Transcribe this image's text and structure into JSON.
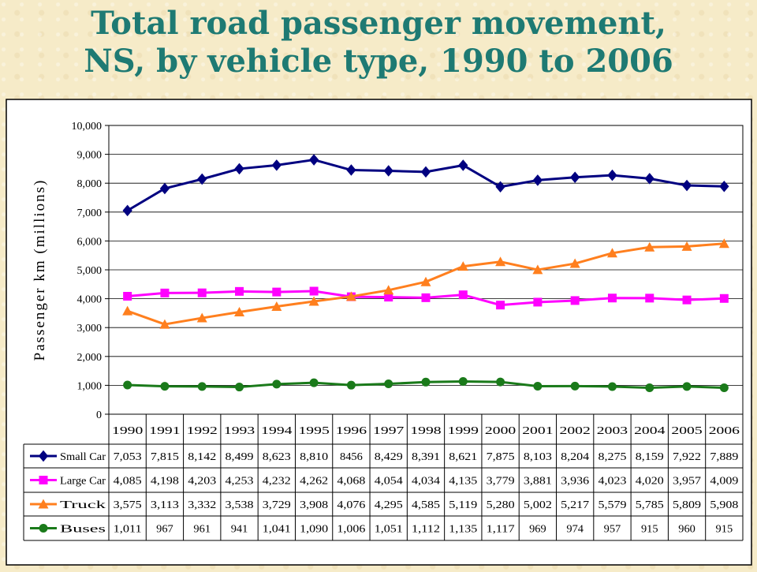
{
  "title_line1": "Total road passenger movement,",
  "title_line2": "NS, by vehicle type, 1990 to 2006",
  "chart_data": {
    "type": "line",
    "title": "Total road passenger movement, NS, by vehicle type, 1990 to 2006",
    "xlabel": "",
    "ylabel": "Passenger km (millions)",
    "ylim": [
      0,
      10000
    ],
    "yticks": [
      "0",
      "1,000",
      "2,000",
      "3,000",
      "4,000",
      "5,000",
      "6,000",
      "7,000",
      "8,000",
      "9,000",
      "10,000"
    ],
    "grid": true,
    "legend": "data-table",
    "categories": [
      "1990",
      "1991",
      "1992",
      "1993",
      "1994",
      "1995",
      "1996",
      "1997",
      "1998",
      "1999",
      "2000",
      "2001",
      "2002",
      "2003",
      "2004",
      "2005",
      "2006"
    ],
    "series": [
      {
        "name": "Small Car",
        "color": "#000080",
        "marker": "diamond",
        "values": [
          7053,
          7815,
          8142,
          8499,
          8623,
          8810,
          8456,
          8429,
          8391,
          8621,
          7875,
          8103,
          8204,
          8275,
          8159,
          7922,
          7889
        ],
        "labels": [
          "7,053",
          "7,815",
          "8,142",
          "8,499",
          "8,623",
          "8,810",
          "8456",
          "8,429",
          "8,391",
          "8,621",
          "7,875",
          "8,103",
          "8,204",
          "8,275",
          "8,159",
          "7,922",
          "7,889"
        ]
      },
      {
        "name": "Large Car",
        "color": "#ff00ff",
        "marker": "square",
        "values": [
          4085,
          4198,
          4203,
          4253,
          4232,
          4262,
          4068,
          4054,
          4034,
          4135,
          3779,
          3881,
          3936,
          4023,
          4020,
          3957,
          4009
        ],
        "labels": [
          "4,085",
          "4,198",
          "4,203",
          "4,253",
          "4,232",
          "4,262",
          "4,068",
          "4,054",
          "4,034",
          "4,135",
          "3,779",
          "3,881",
          "3,936",
          "4,023",
          "4,020",
          "3,957",
          "4,009"
        ]
      },
      {
        "name": "Truck",
        "color": "#ff7f1e",
        "marker": "triangle",
        "values": [
          3575,
          3113,
          3332,
          3538,
          3729,
          3908,
          4076,
          4295,
          4585,
          5119,
          5280,
          5002,
          5217,
          5579,
          5785,
          5809,
          5908
        ],
        "labels": [
          "3,575",
          "3,113",
          "3,332",
          "3,538",
          "3,729",
          "3,908",
          "4,076",
          "4,295",
          "4,585",
          "5,119",
          "5,280",
          "5,002",
          "5,217",
          "5,579",
          "5,785",
          "5,809",
          "5,908"
        ]
      },
      {
        "name": "Buses",
        "color": "#1a7a1a",
        "marker": "circle",
        "values": [
          1011,
          967,
          961,
          941,
          1041,
          1090,
          1006,
          1051,
          1112,
          1135,
          1117,
          969,
          974,
          957,
          915,
          960,
          915
        ],
        "labels": [
          "1,011",
          "967",
          "961",
          "941",
          "1,041",
          "1,090",
          "1,006",
          "1,051",
          "1,112",
          "1,135",
          "1,117",
          "969",
          "974",
          "957",
          "915",
          "960",
          "915"
        ]
      }
    ]
  }
}
